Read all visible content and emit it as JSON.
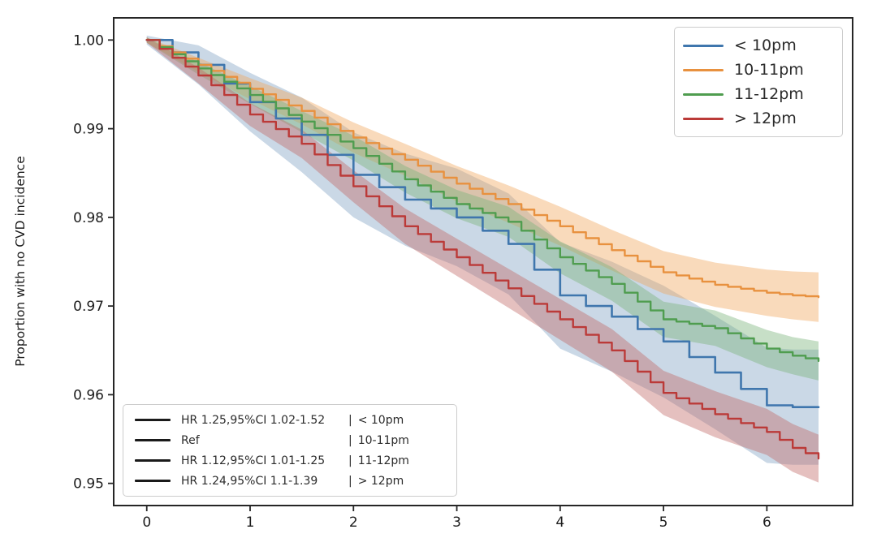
{
  "figure": {
    "background": "#ffffff",
    "axis_color": "#262626"
  },
  "chart_data": {
    "type": "line",
    "subtype": "kaplan-meier-survival",
    "title": "",
    "xlabel": "",
    "ylabel": "Proportion with no CVD incidence",
    "xlim": [
      -0.32,
      6.83
    ],
    "ylim": [
      0.9475,
      1.0025
    ],
    "grid": false,
    "legend_position": "upper right",
    "xticks": [
      0,
      1,
      2,
      3,
      4,
      5,
      6
    ],
    "xtick_labels": [
      "0",
      "1",
      "2",
      "3",
      "4",
      "5",
      "6"
    ],
    "yticks": [
      1.0,
      0.99,
      0.98,
      0.97,
      0.96,
      0.95
    ],
    "ytick_labels": [
      "1.00",
      "0.99",
      "0.98",
      "0.97",
      "0.96",
      "0.95"
    ],
    "x": [
      0,
      0.5,
      1,
      1.5,
      2,
      2.5,
      3,
      3.5,
      4,
      4.5,
      5,
      5.5,
      6,
      6.25,
      6.5
    ],
    "series": [
      {
        "name": "< 10pm",
        "color": "#3f76ad",
        "band_color": "#89a8c8",
        "band_opacity": 0.45,
        "line_width": 2.6,
        "step_dt": 0.25,
        "values": [
          1.0,
          0.9972,
          0.993,
          0.9893,
          0.9848,
          0.982,
          0.98,
          0.977,
          0.9712,
          0.9688,
          0.966,
          0.9625,
          0.9588,
          0.9586,
          0.9586
        ],
        "ci_halfwidth": [
          0.0005,
          0.0022,
          0.0033,
          0.0042,
          0.0048,
          0.0052,
          0.0055,
          0.0057,
          0.006,
          0.0062,
          0.0063,
          0.0064,
          0.0065,
          0.0065,
          0.0065
        ],
        "hr_stat": "HR 1.25,95%CI 1.02-1.52"
      },
      {
        "name": "10-11pm",
        "color": "#e8913f",
        "band_color": "#f0a85c",
        "band_opacity": 0.42,
        "line_width": 2.4,
        "step_dt": 0.125,
        "values": [
          1.0,
          0.9972,
          0.9945,
          0.992,
          0.989,
          0.9865,
          0.9838,
          0.9815,
          0.979,
          0.9763,
          0.9738,
          0.9724,
          0.9715,
          0.9712,
          0.971
        ],
        "ci_halfwidth": [
          0.0003,
          0.0008,
          0.0012,
          0.0015,
          0.0017,
          0.0018,
          0.002,
          0.0021,
          0.0022,
          0.0023,
          0.0024,
          0.0025,
          0.0026,
          0.0027,
          0.0028
        ],
        "hr_stat": "Ref"
      },
      {
        "name": "11-12pm",
        "color": "#4f9d4f",
        "band_color": "#7ab37a",
        "band_opacity": 0.42,
        "line_width": 2.4,
        "step_dt": 0.125,
        "values": [
          1.0,
          0.9968,
          0.9938,
          0.9908,
          0.9878,
          0.9843,
          0.9815,
          0.9795,
          0.9755,
          0.9725,
          0.9685,
          0.9675,
          0.9652,
          0.9644,
          0.9638
        ],
        "ci_halfwidth": [
          0.0003,
          0.0007,
          0.001,
          0.0012,
          0.0014,
          0.0015,
          0.0016,
          0.0017,
          0.0018,
          0.0019,
          0.002,
          0.002,
          0.0021,
          0.0021,
          0.0022
        ],
        "hr_stat": "HR 1.12,95%CI 1.01-1.25"
      },
      {
        "name": "> 12pm",
        "color": "#bb3a38",
        "band_color": "#c06a66",
        "band_opacity": 0.42,
        "line_width": 2.4,
        "step_dt": 0.125,
        "values": [
          1.0,
          0.996,
          0.9916,
          0.9883,
          0.9835,
          0.979,
          0.9755,
          0.972,
          0.9685,
          0.965,
          0.9602,
          0.9578,
          0.9558,
          0.954,
          0.9528
        ],
        "ci_halfwidth": [
          0.0003,
          0.0009,
          0.0013,
          0.0016,
          0.0018,
          0.002,
          0.0021,
          0.0022,
          0.0023,
          0.0024,
          0.0025,
          0.0026,
          0.0026,
          0.0027,
          0.0027
        ],
        "hr_stat": "HR 1.24,95%CI 1.1-1.39"
      }
    ],
    "hr_legend": {
      "separator": "|",
      "rows": [
        {
          "stat": "HR 1.25,95%CI 1.02-1.52",
          "group": "< 10pm"
        },
        {
          "stat": "Ref",
          "group": "10-11pm"
        },
        {
          "stat": "HR 1.12,95%CI 1.01-1.25",
          "group": "11-12pm"
        },
        {
          "stat": "HR 1.24,95%CI 1.1-1.39",
          "group": "> 12pm"
        }
      ]
    }
  }
}
